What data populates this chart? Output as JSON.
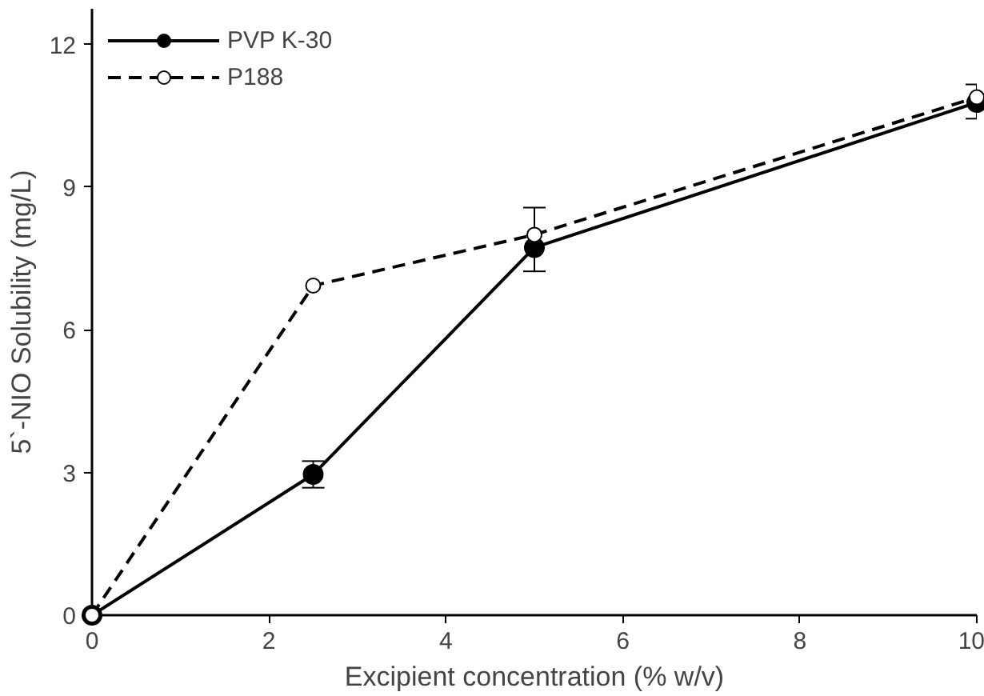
{
  "chart_data": {
    "type": "line",
    "xlabel": "Excipient concentration (% w/v)",
    "ylabel": "5`-NIO Solubility (mg/L)",
    "x": [
      0,
      2.5,
      5,
      10
    ],
    "series": [
      {
        "name": "PVP K-30",
        "color": "#000000",
        "marker": "circle",
        "line_style": "solid",
        "values": [
          0,
          2.96,
          7.73,
          10.78
        ],
        "errors": [
          null,
          0.28,
          [
            7.23,
            8.57
          ],
          [
            10.44,
            11.16
          ]
        ]
      },
      {
        "name": "P188",
        "color": "#000000",
        "marker": "circle",
        "line_style": "dashed",
        "values": [
          0,
          6.93,
          8.0,
          10.89
        ]
      }
    ],
    "xlim": [
      0,
      10
    ],
    "ylim": [
      0,
      12.75
    ],
    "xticks": [
      0,
      2,
      4,
      6,
      8,
      10
    ],
    "yticks": [
      0,
      3,
      6,
      9,
      12
    ],
    "grid": false,
    "legend": "top left"
  }
}
